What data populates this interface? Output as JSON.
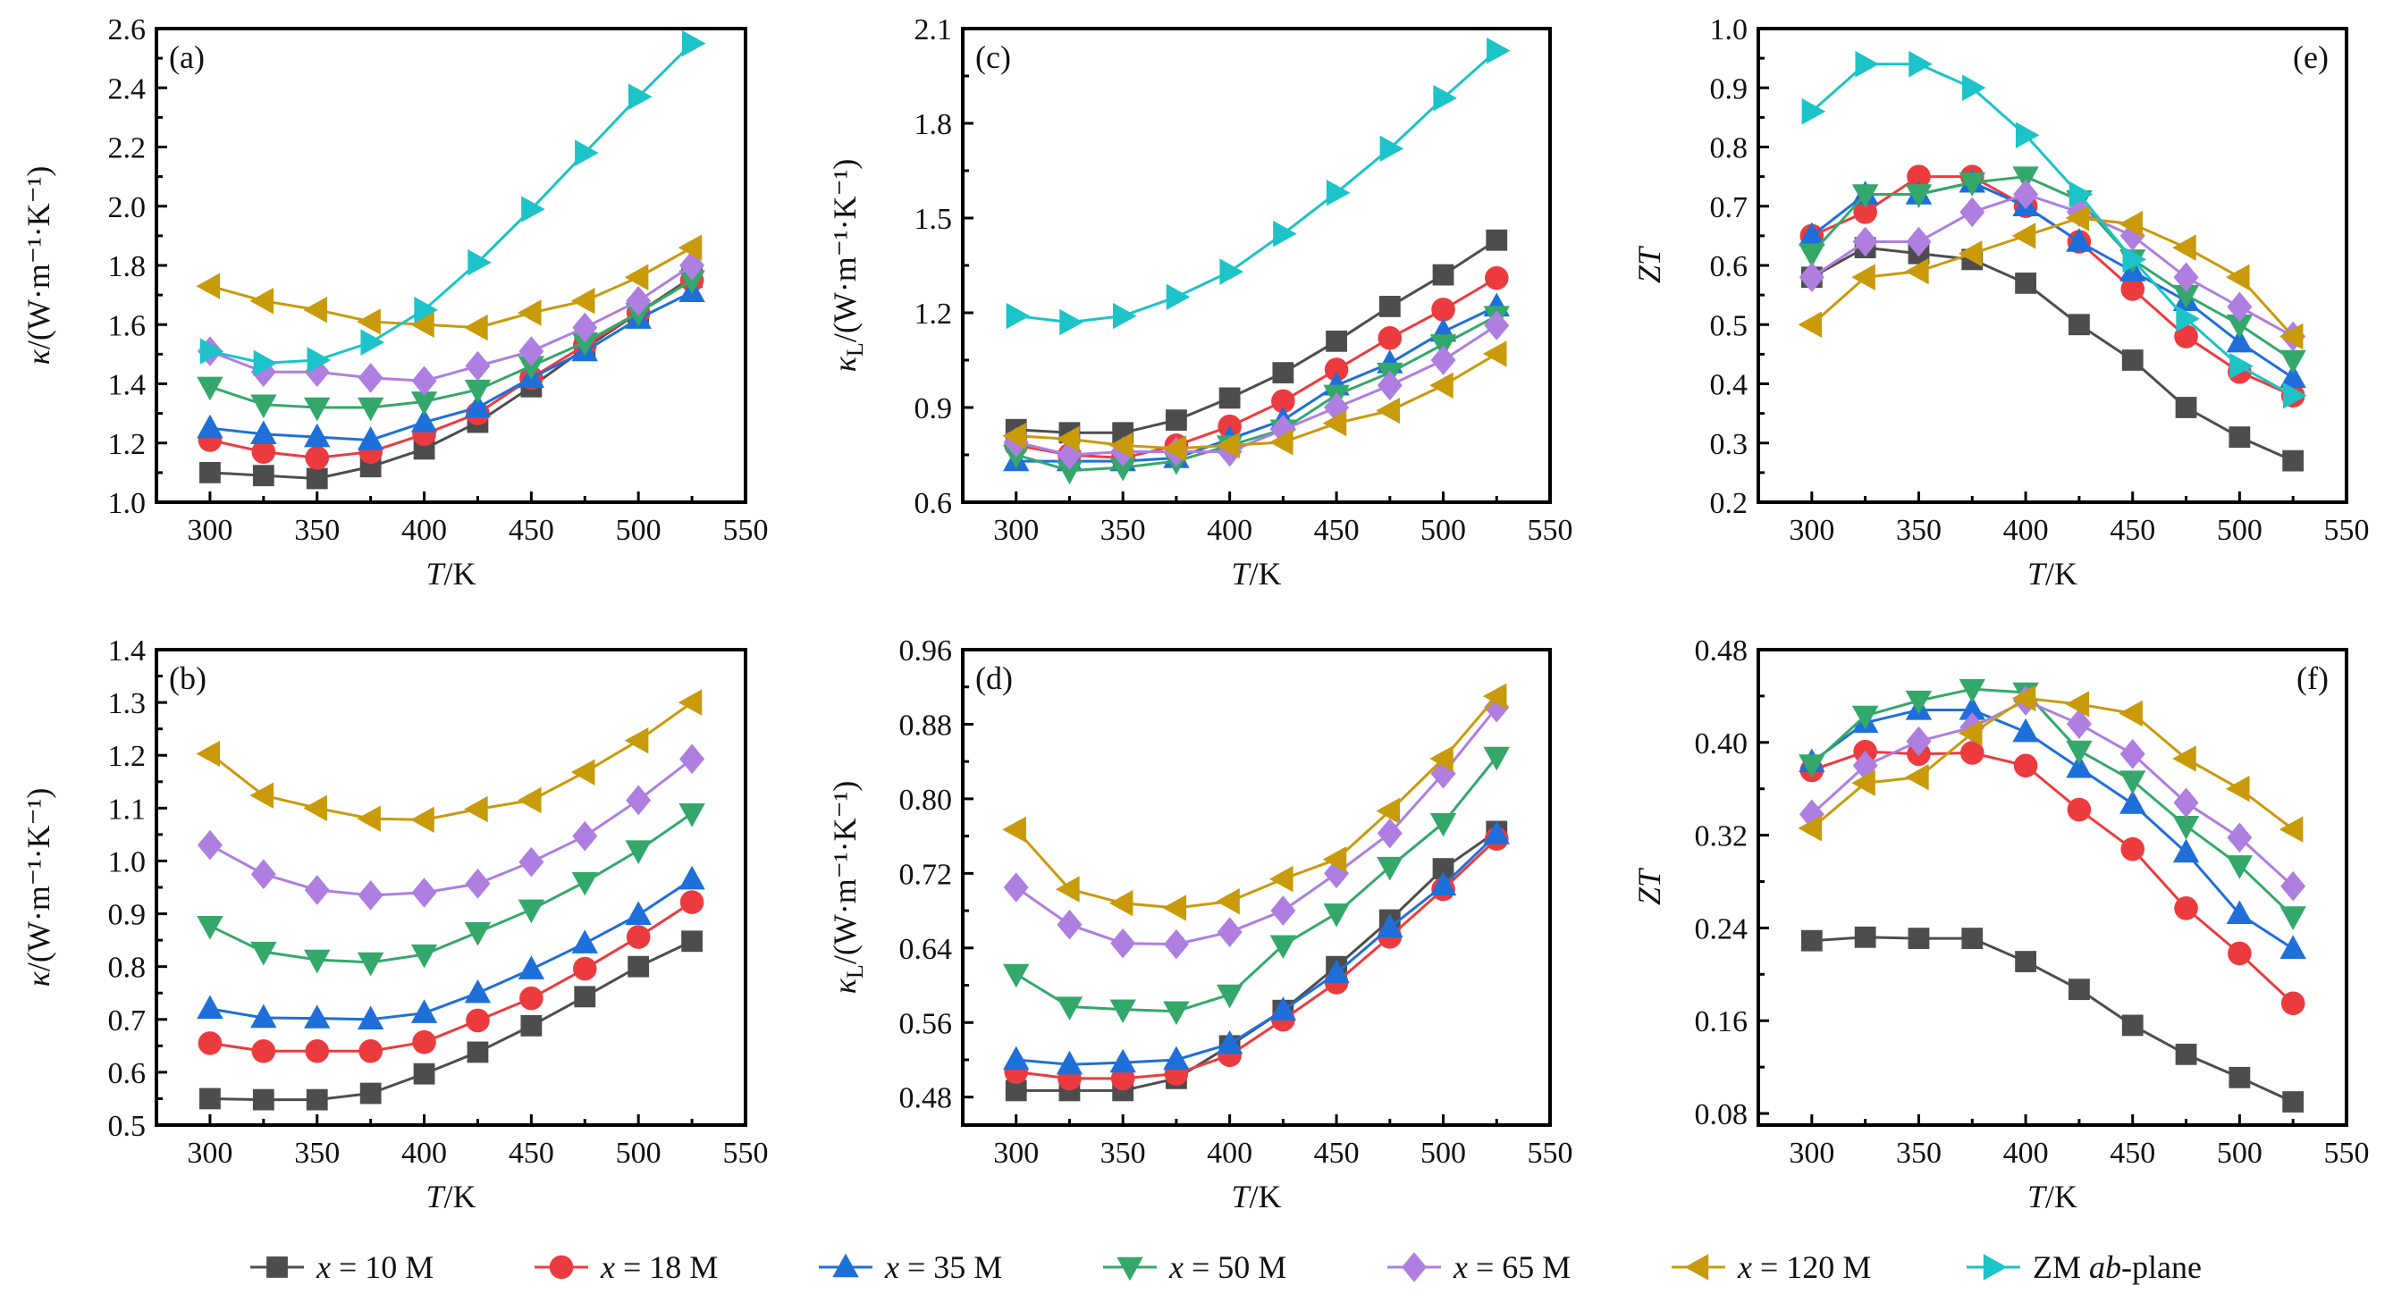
{
  "figure": {
    "legend": [
      {
        "key": "x10",
        "label": "x = 10 M",
        "color": "#4d4d4d",
        "marker": "square"
      },
      {
        "key": "x18",
        "label": "x = 18 M",
        "color": "#ec3b3f",
        "marker": "circle"
      },
      {
        "key": "x35",
        "label": "x = 35 M",
        "color": "#1e6fd9",
        "marker": "triangle-up"
      },
      {
        "key": "x50",
        "label": "x = 50 M",
        "color": "#33a86a",
        "marker": "triangle-down"
      },
      {
        "key": "x65",
        "label": "x = 65 M",
        "color": "#ae7ee0",
        "marker": "diamond"
      },
      {
        "key": "x120",
        "label": "x = 120 M",
        "color": "#c99a0a",
        "marker": "triangle-left"
      },
      {
        "key": "zm",
        "label": "ZM ab-plane",
        "color": "#1cc3c8",
        "marker": "triangle-right"
      }
    ]
  },
  "chart_data": [
    {
      "panel": "(a)",
      "type": "line",
      "xlabel": "T/K",
      "ylabel": "κ/(W·m⁻¹·K⁻¹)",
      "xlim": [
        275,
        550
      ],
      "ylim": [
        1.0,
        2.6
      ],
      "xticks": [
        300,
        350,
        400,
        450,
        500,
        550
      ],
      "yticks": [
        1.0,
        1.2,
        1.4,
        1.6,
        1.8,
        2.0,
        2.2,
        2.4,
        2.6
      ],
      "ytick_labels": [
        "1.0",
        "1.2",
        "1.4",
        "1.6",
        "1.8",
        "2.0",
        "2.2",
        "2.4",
        "2.6"
      ],
      "tag_position": "top-left",
      "x": [
        300,
        325,
        350,
        375,
        400,
        425,
        450,
        475,
        500,
        525
      ],
      "series": [
        {
          "key": "x10",
          "values": [
            1.1,
            1.09,
            1.08,
            1.12,
            1.18,
            1.27,
            1.39,
            1.52,
            1.64,
            1.76
          ]
        },
        {
          "key": "x18",
          "values": [
            1.21,
            1.17,
            1.15,
            1.17,
            1.23,
            1.3,
            1.42,
            1.53,
            1.64,
            1.75
          ]
        },
        {
          "key": "x35",
          "values": [
            1.25,
            1.23,
            1.22,
            1.21,
            1.27,
            1.32,
            1.42,
            1.51,
            1.62,
            1.71
          ]
        },
        {
          "key": "x50",
          "values": [
            1.39,
            1.33,
            1.32,
            1.32,
            1.34,
            1.38,
            1.46,
            1.54,
            1.64,
            1.75
          ]
        },
        {
          "key": "x65",
          "values": [
            1.51,
            1.44,
            1.44,
            1.42,
            1.41,
            1.46,
            1.51,
            1.59,
            1.68,
            1.8
          ]
        },
        {
          "key": "x120",
          "values": [
            1.73,
            1.68,
            1.65,
            1.61,
            1.6,
            1.59,
            1.64,
            1.68,
            1.76,
            1.86
          ]
        },
        {
          "key": "zm",
          "values": [
            1.51,
            1.47,
            1.48,
            1.54,
            1.65,
            1.81,
            1.99,
            2.18,
            2.37,
            2.55
          ]
        }
      ]
    },
    {
      "panel": "(c)",
      "type": "line",
      "xlabel": "T/K",
      "ylabel": "κL/(W·m⁻¹·K⁻¹)",
      "xlim": [
        275,
        550
      ],
      "ylim": [
        0.6,
        2.1
      ],
      "xticks": [
        300,
        350,
        400,
        450,
        500,
        550
      ],
      "yticks": [
        0.6,
        0.9,
        1.2,
        1.5,
        1.8,
        2.1
      ],
      "ytick_labels": [
        "0.6",
        "0.9",
        "1.2",
        "1.5",
        "1.8",
        "2.1"
      ],
      "tag_position": "top-left",
      "x": [
        300,
        325,
        350,
        375,
        400,
        425,
        450,
        475,
        500,
        525
      ],
      "series": [
        {
          "key": "x10",
          "values": [
            0.83,
            0.82,
            0.82,
            0.86,
            0.93,
            1.01,
            1.11,
            1.22,
            1.32,
            1.43
          ]
        },
        {
          "key": "x18",
          "values": [
            0.78,
            0.75,
            0.74,
            0.78,
            0.84,
            0.92,
            1.02,
            1.12,
            1.21,
            1.31
          ]
        },
        {
          "key": "x35",
          "values": [
            0.73,
            0.73,
            0.73,
            0.74,
            0.8,
            0.86,
            0.97,
            1.04,
            1.14,
            1.22
          ]
        },
        {
          "key": "x50",
          "values": [
            0.75,
            0.7,
            0.71,
            0.73,
            0.78,
            0.83,
            0.94,
            1.01,
            1.1,
            1.19
          ]
        },
        {
          "key": "x65",
          "values": [
            0.79,
            0.75,
            0.76,
            0.76,
            0.76,
            0.83,
            0.9,
            0.97,
            1.05,
            1.16
          ]
        },
        {
          "key": "x120",
          "values": [
            0.81,
            0.8,
            0.78,
            0.77,
            0.78,
            0.79,
            0.85,
            0.89,
            0.97,
            1.07
          ]
        },
        {
          "key": "zm",
          "values": [
            1.19,
            1.17,
            1.19,
            1.25,
            1.33,
            1.45,
            1.58,
            1.72,
            1.88,
            2.03
          ]
        }
      ]
    },
    {
      "panel": "(e)",
      "type": "line",
      "xlabel": "T/K",
      "ylabel": "ZT",
      "xlim": [
        275,
        550
      ],
      "ylim": [
        0.2,
        1.0
      ],
      "xticks": [
        300,
        350,
        400,
        450,
        500,
        550
      ],
      "yticks": [
        0.2,
        0.3,
        0.4,
        0.5,
        0.6,
        0.7,
        0.8,
        0.9,
        1.0
      ],
      "ytick_labels": [
        "0.2",
        "0.3",
        "0.4",
        "0.5",
        "0.6",
        "0.7",
        "0.8",
        "0.9",
        "1.0"
      ],
      "tag_position": "top-right",
      "x": [
        300,
        325,
        350,
        375,
        400,
        425,
        450,
        475,
        500,
        525
      ],
      "series": [
        {
          "key": "x10",
          "values": [
            0.58,
            0.63,
            0.62,
            0.61,
            0.57,
            0.5,
            0.44,
            0.36,
            0.31,
            0.27
          ]
        },
        {
          "key": "x18",
          "values": [
            0.65,
            0.69,
            0.75,
            0.75,
            0.7,
            0.64,
            0.56,
            0.48,
            0.42,
            0.38
          ]
        },
        {
          "key": "x35",
          "values": [
            0.65,
            0.72,
            0.72,
            0.74,
            0.7,
            0.64,
            0.59,
            0.54,
            0.47,
            0.41
          ]
        },
        {
          "key": "x50",
          "values": [
            0.62,
            0.72,
            0.72,
            0.74,
            0.75,
            0.71,
            0.61,
            0.55,
            0.5,
            0.44
          ]
        },
        {
          "key": "x65",
          "values": [
            0.58,
            0.64,
            0.64,
            0.69,
            0.72,
            0.69,
            0.65,
            0.58,
            0.53,
            0.48
          ]
        },
        {
          "key": "x120",
          "values": [
            0.5,
            0.58,
            0.59,
            0.62,
            0.65,
            0.68,
            0.67,
            0.63,
            0.58,
            0.48
          ]
        },
        {
          "key": "zm",
          "values": [
            0.86,
            0.94,
            0.94,
            0.9,
            0.82,
            0.72,
            0.61,
            0.51,
            0.43,
            0.38
          ]
        }
      ]
    },
    {
      "panel": "(b)",
      "type": "line",
      "xlabel": "T/K",
      "ylabel": "κ/(W·m⁻¹·K⁻¹)",
      "xlim": [
        275,
        550
      ],
      "ylim": [
        0.5,
        1.4
      ],
      "xticks": [
        300,
        350,
        400,
        450,
        500,
        550
      ],
      "yticks": [
        0.5,
        0.6,
        0.7,
        0.8,
        0.9,
        1.0,
        1.1,
        1.2,
        1.3,
        1.4
      ],
      "ytick_labels": [
        "0.5",
        "0.6",
        "0.7",
        "0.8",
        "0.9",
        "1.0",
        "1.1",
        "1.2",
        "1.3",
        "1.4"
      ],
      "tag_position": "top-left",
      "x": [
        300,
        325,
        350,
        375,
        400,
        425,
        450,
        475,
        500,
        525
      ],
      "series": [
        {
          "key": "x10",
          "values": [
            0.55,
            0.548,
            0.548,
            0.56,
            0.597,
            0.638,
            0.688,
            0.743,
            0.8,
            0.848
          ]
        },
        {
          "key": "x18",
          "values": [
            0.655,
            0.64,
            0.64,
            0.64,
            0.657,
            0.698,
            0.74,
            0.796,
            0.856,
            0.922
          ]
        },
        {
          "key": "x35",
          "values": [
            0.72,
            0.703,
            0.702,
            0.7,
            0.712,
            0.75,
            0.795,
            0.844,
            0.898,
            0.965
          ]
        },
        {
          "key": "x50",
          "values": [
            0.877,
            0.828,
            0.813,
            0.808,
            0.823,
            0.865,
            0.908,
            0.96,
            1.02,
            1.09
          ]
        },
        {
          "key": "x65",
          "values": [
            1.03,
            0.975,
            0.945,
            0.935,
            0.94,
            0.957,
            0.998,
            1.047,
            1.115,
            1.193
          ]
        },
        {
          "key": "x120",
          "values": [
            1.203,
            1.124,
            1.1,
            1.08,
            1.078,
            1.098,
            1.115,
            1.168,
            1.228,
            1.3
          ]
        }
      ]
    },
    {
      "panel": "(d)",
      "type": "line",
      "xlabel": "T/K",
      "ylabel": "κL/(W·m⁻¹·K⁻¹)",
      "xlim": [
        275,
        550
      ],
      "ylim": [
        0.45,
        0.96
      ],
      "xticks": [
        300,
        350,
        400,
        450,
        500,
        550
      ],
      "yticks": [
        0.48,
        0.56,
        0.64,
        0.72,
        0.8,
        0.88,
        0.96
      ],
      "ytick_labels": [
        "0.48",
        "0.56",
        "0.64",
        "0.72",
        "0.80",
        "0.88",
        "0.96"
      ],
      "tag_position": "top-left",
      "x": [
        300,
        325,
        350,
        375,
        400,
        425,
        450,
        475,
        500,
        525
      ],
      "series": [
        {
          "key": "x10",
          "values": [
            0.487,
            0.487,
            0.487,
            0.5,
            0.535,
            0.573,
            0.62,
            0.67,
            0.725,
            0.765
          ]
        },
        {
          "key": "x18",
          "values": [
            0.507,
            0.5,
            0.5,
            0.505,
            0.525,
            0.563,
            0.603,
            0.652,
            0.703,
            0.757
          ]
        },
        {
          "key": "x35",
          "values": [
            0.52,
            0.515,
            0.517,
            0.52,
            0.537,
            0.573,
            0.613,
            0.662,
            0.707,
            0.762
          ]
        },
        {
          "key": "x50",
          "values": [
            0.612,
            0.577,
            0.574,
            0.572,
            0.59,
            0.643,
            0.677,
            0.727,
            0.774,
            0.845
          ]
        },
        {
          "key": "x65",
          "values": [
            0.705,
            0.665,
            0.645,
            0.644,
            0.657,
            0.68,
            0.72,
            0.763,
            0.827,
            0.898
          ]
        },
        {
          "key": "x120",
          "values": [
            0.767,
            0.703,
            0.688,
            0.683,
            0.69,
            0.714,
            0.735,
            0.787,
            0.843,
            0.91
          ]
        }
      ]
    },
    {
      "panel": "(f)",
      "type": "line",
      "xlabel": "T/K",
      "ylabel": "ZT",
      "xlim": [
        275,
        550
      ],
      "ylim": [
        0.07,
        0.48
      ],
      "xticks": [
        300,
        350,
        400,
        450,
        500,
        550
      ],
      "yticks": [
        0.08,
        0.16,
        0.24,
        0.32,
        0.4,
        0.48
      ],
      "ytick_labels": [
        "0.08",
        "0.16",
        "0.24",
        "0.32",
        "0.40",
        "0.48"
      ],
      "tag_position": "top-right",
      "x": [
        300,
        325,
        350,
        375,
        400,
        425,
        450,
        475,
        500,
        525
      ],
      "series": [
        {
          "key": "x10",
          "values": [
            0.229,
            0.232,
            0.231,
            0.231,
            0.211,
            0.187,
            0.156,
            0.131,
            0.111,
            0.09
          ]
        },
        {
          "key": "x18",
          "values": [
            0.376,
            0.392,
            0.39,
            0.391,
            0.38,
            0.342,
            0.308,
            0.257,
            0.218,
            0.175
          ]
        },
        {
          "key": "x35",
          "values": [
            0.383,
            0.417,
            0.428,
            0.428,
            0.409,
            0.378,
            0.347,
            0.305,
            0.252,
            0.222
          ]
        },
        {
          "key": "x50",
          "values": [
            0.381,
            0.423,
            0.436,
            0.446,
            0.443,
            0.393,
            0.367,
            0.328,
            0.294,
            0.25
          ]
        },
        {
          "key": "x65",
          "values": [
            0.338,
            0.38,
            0.401,
            0.413,
            0.436,
            0.416,
            0.39,
            0.348,
            0.318,
            0.276
          ]
        },
        {
          "key": "x120",
          "values": [
            0.326,
            0.365,
            0.37,
            0.408,
            0.438,
            0.433,
            0.425,
            0.386,
            0.36,
            0.325
          ]
        }
      ]
    }
  ]
}
